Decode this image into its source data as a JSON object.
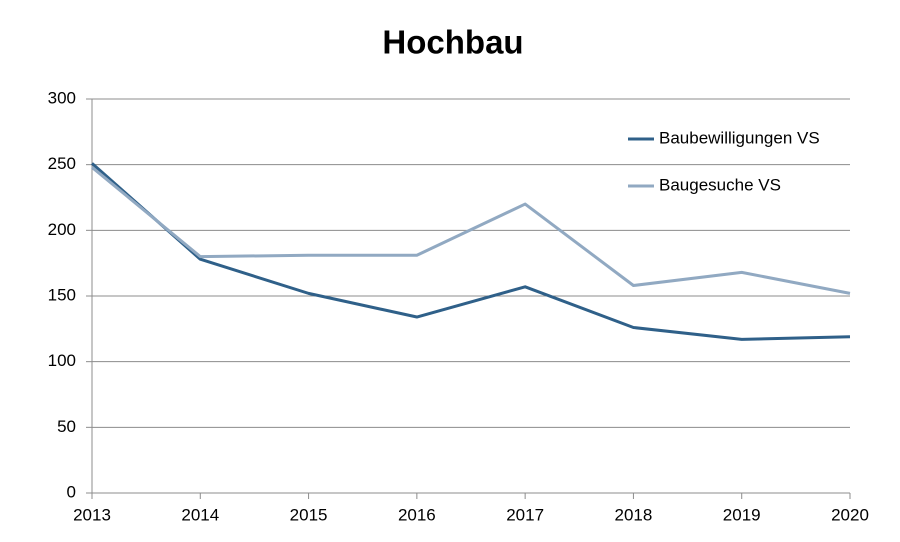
{
  "chart_data": {
    "type": "line",
    "title": "Hochbau",
    "x": [
      2013,
      2014,
      2015,
      2016,
      2017,
      2018,
      2019,
      2020
    ],
    "series": [
      {
        "name": "Baubewilligungen VS",
        "color": "#2f6089",
        "values": [
          251,
          178,
          152,
          134,
          157,
          126,
          117,
          119
        ]
      },
      {
        "name": "Baugesuche VS",
        "color": "#91a9c2",
        "values": [
          248,
          180,
          181,
          181,
          220,
          158,
          168,
          152
        ]
      }
    ],
    "xlim": [
      2013,
      2020
    ],
    "xticks": [
      2013,
      2014,
      2015,
      2016,
      2017,
      2018,
      2019,
      2020
    ],
    "ylim": [
      0,
      300
    ],
    "yticks": [
      0,
      50,
      100,
      150,
      200,
      250,
      300
    ],
    "grid": true,
    "legend": "upper right"
  }
}
